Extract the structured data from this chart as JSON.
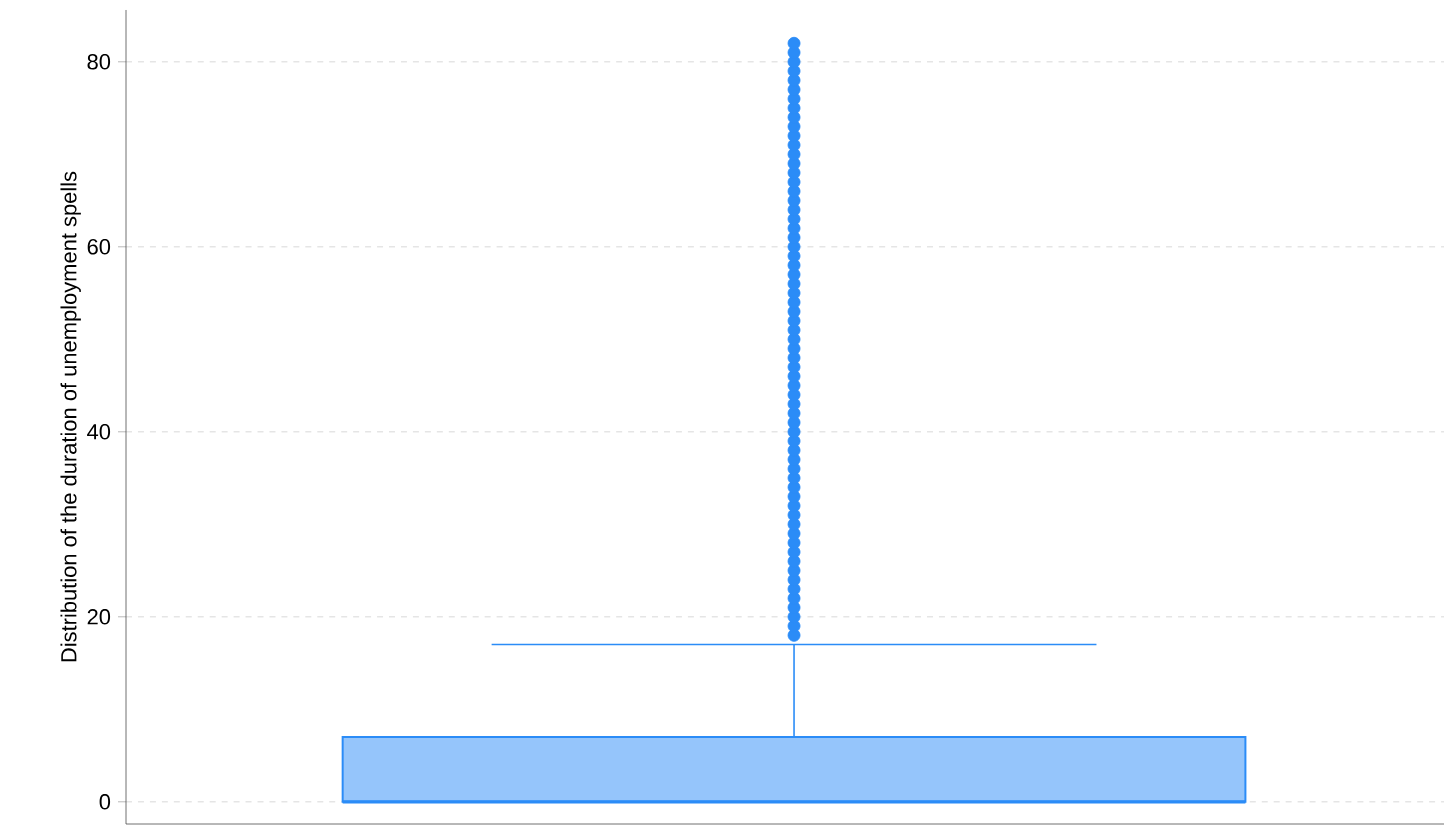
{
  "chart_data": {
    "type": "box",
    "ylabel": "Distribution of the duration of unemployment spells",
    "categories": [
      null
    ],
    "boxes": [
      {
        "low": 0,
        "q1": 0,
        "median": 0,
        "q3": 7,
        "high": 17,
        "outliers": [
          18,
          19,
          20,
          21,
          22,
          23,
          24,
          25,
          26,
          27,
          28,
          29,
          30,
          31,
          32,
          33,
          34,
          35,
          36,
          37,
          38,
          39,
          40,
          41,
          42,
          43,
          44,
          45,
          46,
          47,
          48,
          49,
          50,
          51,
          52,
          53,
          54,
          55,
          56,
          57,
          58,
          59,
          60,
          61,
          62,
          63,
          64,
          65,
          66,
          67,
          68,
          69,
          70,
          71,
          72,
          73,
          74,
          75,
          76,
          77,
          78,
          79,
          80,
          81,
          82
        ]
      }
    ],
    "color": "#2b8cf7",
    "ylim": [
      -2.4,
      85.6
    ],
    "yticks": [
      0,
      20,
      40,
      60,
      80
    ],
    "grid": "y"
  }
}
